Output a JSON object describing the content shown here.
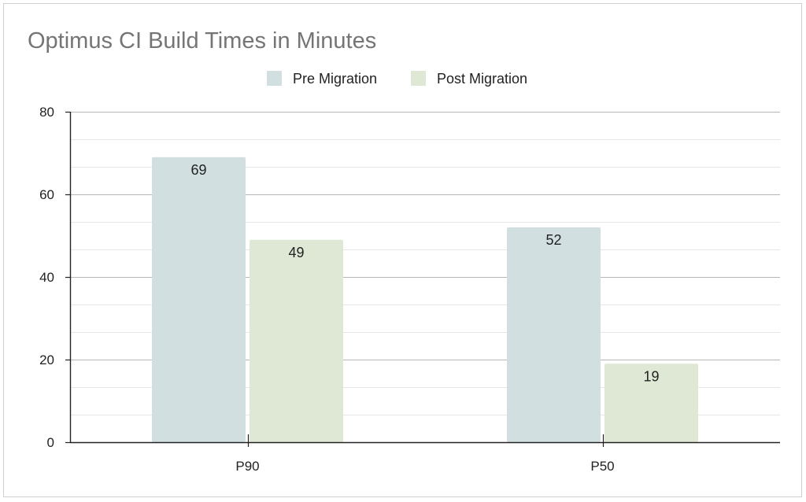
{
  "chart_data": {
    "type": "bar",
    "title": "Optimus CI Build Times in Minutes",
    "xlabel": "",
    "ylabel": "",
    "categories": [
      "P90",
      "P50"
    ],
    "series": [
      {
        "name": "Pre Migration",
        "values": [
          69,
          52
        ],
        "color": "#d2dfe1"
      },
      {
        "name": "Post Migration",
        "values": [
          49,
          19
        ],
        "color": "#dfe8d5"
      }
    ],
    "ylim": [
      0,
      80
    ],
    "yticks": [
      0,
      20,
      40,
      60,
      80
    ],
    "yticks_labels": [
      "0",
      "20",
      "40",
      "60",
      "80"
    ],
    "minor_grid_step": 6.666666666666667,
    "grid": true,
    "legend_position": "top-center",
    "data_labels": true,
    "colors": {
      "title": "#757575",
      "major_grid": "#b7b7b7",
      "minor_grid": "#e6e6e6",
      "axis": "#222222"
    }
  }
}
